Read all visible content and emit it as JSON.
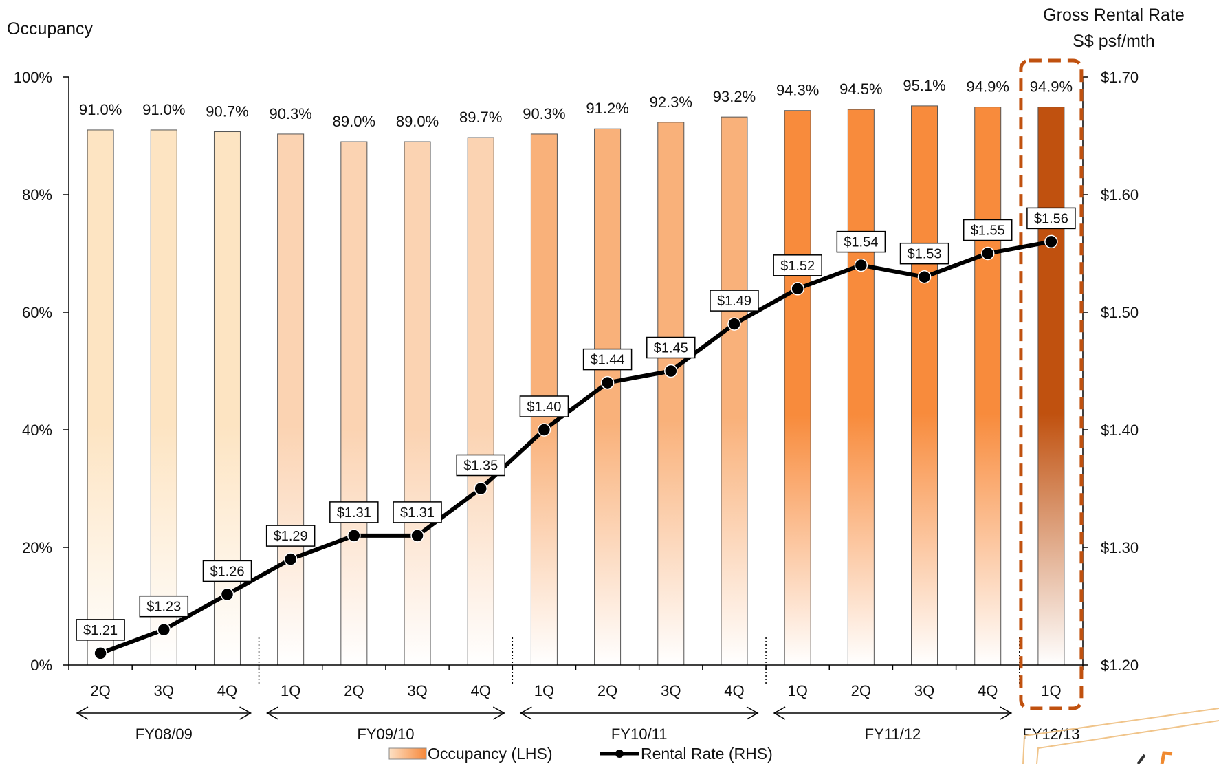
{
  "chart_data": {
    "type": "bar+line",
    "title": "",
    "ylabel_left": "Occupancy",
    "ylabel_right_line1": "Gross Rental Rate",
    "ylabel_right_line2": "S$ psf/mth",
    "ylim_left": [
      0,
      100
    ],
    "ylim_right": [
      1.2,
      1.7
    ],
    "left_ticks": [
      "0%",
      "20%",
      "40%",
      "60%",
      "80%",
      "100%"
    ],
    "right_ticks": [
      "$1.20",
      "$1.30",
      "$1.40",
      "$1.50",
      "$1.60",
      "$1.70"
    ],
    "categories": [
      "2Q",
      "3Q",
      "4Q",
      "1Q",
      "2Q",
      "3Q",
      "4Q",
      "1Q",
      "2Q",
      "3Q",
      "4Q",
      "1Q",
      "2Q",
      "3Q",
      "4Q",
      "1Q"
    ],
    "fiscal_years": [
      {
        "label": "FY08/09",
        "start": 0,
        "end": 2
      },
      {
        "label": "FY09/10",
        "start": 3,
        "end": 6
      },
      {
        "label": "FY10/11",
        "start": 7,
        "end": 10
      },
      {
        "label": "FY11/12",
        "start": 11,
        "end": 14
      },
      {
        "label": "FY12/13",
        "start": 15,
        "end": 15
      }
    ],
    "series": [
      {
        "name": "Occupancy (LHS)",
        "type": "bar",
        "axis": "left",
        "values": [
          91.0,
          91.0,
          90.7,
          90.3,
          89.0,
          89.0,
          89.7,
          90.3,
          91.2,
          92.3,
          93.2,
          94.3,
          94.5,
          95.1,
          94.9,
          94.9
        ],
        "labels": [
          "91.0%",
          "91.0%",
          "90.7%",
          "90.3%",
          "89.0%",
          "89.0%",
          "89.7%",
          "90.3%",
          "91.2%",
          "92.3%",
          "93.2%",
          "94.3%",
          "94.5%",
          "95.1%",
          "94.9%",
          "94.9%"
        ]
      },
      {
        "name": "Rental Rate (RHS)",
        "type": "line",
        "axis": "right",
        "values": [
          1.21,
          1.23,
          1.26,
          1.29,
          1.31,
          1.31,
          1.35,
          1.4,
          1.44,
          1.45,
          1.49,
          1.52,
          1.54,
          1.53,
          1.55,
          1.56
        ],
        "labels": [
          "$1.21",
          "$1.23",
          "$1.26",
          "$1.29",
          "$1.31",
          "$1.31",
          "$1.35",
          "$1.40",
          "$1.44",
          "$1.45",
          "$1.49",
          "$1.52",
          "$1.54",
          "$1.53",
          "$1.55",
          "$1.56"
        ]
      }
    ],
    "highlight_index": 15,
    "legend_position": "bottom",
    "grid": false,
    "colors": {
      "fy0809_bar": "#fde4c2",
      "fy0910_bar": "#fbd3b2",
      "fy1011_bar": "#f9b17a",
      "fy1112_bar": "#f88b3c",
      "fy1213_bar": "#c0510f",
      "line": "#000000",
      "highlight_border": "#c0510f"
    }
  }
}
